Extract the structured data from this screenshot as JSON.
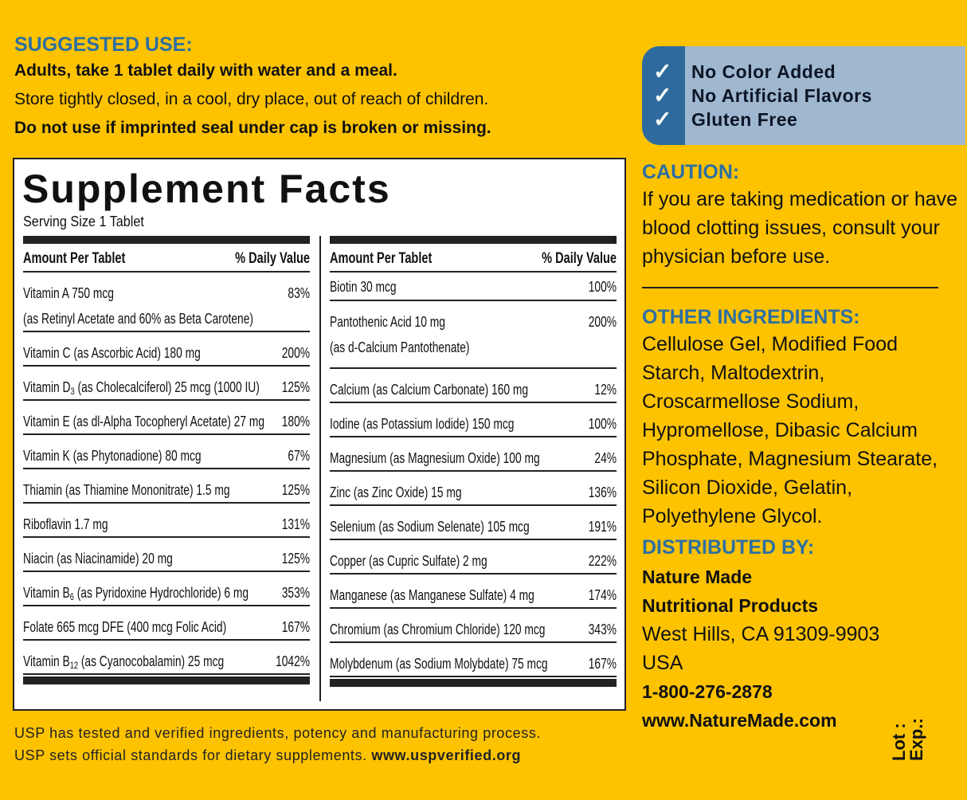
{
  "suggested_use": {
    "heading": "SUGGESTED USE:",
    "line1": "Adults, take 1 tablet daily with water and a meal.",
    "line2": "Store tightly closed, in a cool, dry place, out of reach of children.",
    "line3": "Do not use if imprinted seal under cap is broken or missing."
  },
  "facts": {
    "title": "Supplement Facts",
    "serving": "Serving Size 1 Tablet",
    "col_amount": "Amount Per Tablet",
    "col_dv": "% Daily Value",
    "left": [
      {
        "pre": "Vitamin A  750 mcg",
        "sub": "",
        "post": "",
        "line2": "(as Retinyl Acetate and 60% as Beta Carotene)",
        "dv": "83%"
      },
      {
        "pre": "Vitamin C (as Ascorbic Acid)  180 mg",
        "sub": "",
        "post": "",
        "dv": "200%"
      },
      {
        "pre": "Vitamin D",
        "sub": "3",
        "post": " (as Cholecalciferol) 25 mcg (1000 IU)",
        "dv": "125%"
      },
      {
        "pre": "Vitamin E (as dl-Alpha Tocopheryl Acetate)  27 mg",
        "sub": "",
        "post": "",
        "dv": "180%"
      },
      {
        "pre": "Vitamin K (as Phytonadione)  80 mcg",
        "sub": "",
        "post": "",
        "dv": "67%"
      },
      {
        "pre": "Thiamin (as Thiamine Mononitrate)  1.5 mg",
        "sub": "",
        "post": "",
        "dv": "125%"
      },
      {
        "pre": "Riboflavin  1.7 mg",
        "sub": "",
        "post": "",
        "dv": "131%"
      },
      {
        "pre": "Niacin (as Niacinamide)  20 mg",
        "sub": "",
        "post": "",
        "dv": "125%"
      },
      {
        "pre": "Vitamin B",
        "sub": "6",
        "post": " (as Pyridoxine Hydrochloride)  6 mg",
        "dv": "353%"
      },
      {
        "pre": "Folate  665 mcg DFE (400 mcg Folic Acid)",
        "sub": "",
        "post": "",
        "dv": "167%"
      },
      {
        "pre": "Vitamin B",
        "sub": "12",
        "post": " (as Cyanocobalamin)  25 mcg",
        "dv": "1042%"
      }
    ],
    "right": [
      {
        "pre": "Biotin  30 mcg",
        "dv": "100%"
      },
      {
        "pre": "Pantothenic Acid  10 mg",
        "line2": "(as d-Calcium Pantothenate)",
        "dv": "200%"
      },
      {
        "pre": "Calcium (as Calcium Carbonate)  160 mg",
        "dv": "12%"
      },
      {
        "pre": "Iodine (as Potassium Iodide)  150 mcg",
        "dv": "100%"
      },
      {
        "pre": "Magnesium (as Magnesium Oxide)  100 mg",
        "dv": "24%"
      },
      {
        "pre": "Zinc (as Zinc Oxide)  15 mg",
        "dv": "136%"
      },
      {
        "pre": "Selenium (as Sodium Selenate)  105 mcg",
        "dv": "191%"
      },
      {
        "pre": "Copper (as Cupric Sulfate)  2 mg",
        "dv": "222%"
      },
      {
        "pre": "Manganese (as Manganese Sulfate)  4 mg",
        "dv": "174%"
      },
      {
        "pre": "Chromium (as Chromium Chloride)  120 mcg",
        "dv": "343%"
      },
      {
        "pre": "Molybdenum (as Sodium Molybdate)  75 mcg",
        "dv": "167%"
      }
    ]
  },
  "usp": {
    "line1": "USP has tested and verified ingredients, potency and manufacturing process.",
    "line2": "USP sets official standards for dietary supplements.",
    "url": "www.uspverified.org"
  },
  "claims": [
    "No Color Added",
    "No Artificial Flavors",
    "Gluten Free"
  ],
  "caution": {
    "heading": "CAUTION:",
    "lines": [
      "If you are taking medication or have",
      "blood clotting issues, consult your",
      "physician before use."
    ]
  },
  "other": {
    "heading": "OTHER INGREDIENTS:",
    "lines": [
      "Cellulose Gel, Modified Food",
      "Starch, Maltodextrin,",
      "Croscarmellose Sodium,",
      "Hypromellose, Dibasic Calcium",
      "Phosphate, Magnesium Stearate,",
      "Silicon Dioxide, Gelatin,",
      "Polyethylene Glycol."
    ]
  },
  "distributed": {
    "heading": "DISTRIBUTED BY:",
    "name1": "Nature Made",
    "name2": "Nutritional Products",
    "addr1": "West Hills, CA 91309-9903",
    "addr2": "USA",
    "phone": "1-800-276-2878",
    "web": "www.NatureMade.com"
  },
  "lot": "Lot :",
  "exp": "Exp.:",
  "colors": {
    "background": "#fdc300",
    "heading_blue": "#2d6fa3",
    "claims_box": "#9fb8d0",
    "claims_strip": "#2e6b9c"
  }
}
